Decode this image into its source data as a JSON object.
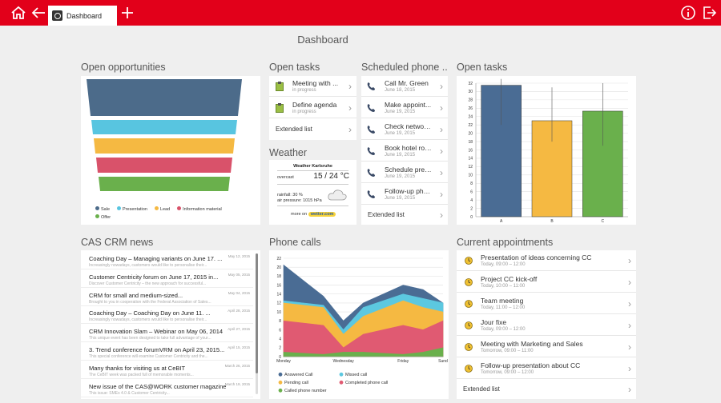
{
  "topbar": {
    "tab_label": "Dashboard",
    "accent": "#e2001a"
  },
  "page": {
    "title": "Dashboard"
  },
  "opportunities": {
    "title": "Open opportunities",
    "legend": [
      {
        "label": "Sale",
        "color": "#4c6b8a"
      },
      {
        "label": "Presentation",
        "color": "#58c5e0"
      },
      {
        "label": "Lead",
        "color": "#f5b942"
      },
      {
        "label": "Information material",
        "color": "#d9526a"
      },
      {
        "label": "Offer",
        "color": "#6ab04c"
      }
    ]
  },
  "open_tasks": {
    "title": "Open tasks",
    "items": [
      {
        "title": "Meeting with ...",
        "status": "in progress"
      },
      {
        "title": "Define agenda",
        "status": "in progress"
      }
    ],
    "extended": "Extended list"
  },
  "weather": {
    "title": "Weather",
    "heading": "Weather Karlsruhe",
    "condition": "overcast",
    "temp": "15 / 24 °C",
    "rainfall": "rainfall: 30 %",
    "pressure": "air pressure: 1015 hPa",
    "more_label": "more on",
    "more_link": "wetter.com"
  },
  "scheduled": {
    "title": "Scheduled phone ...",
    "items": [
      {
        "title": "Call Mr. Green",
        "date": "June 18, 2015"
      },
      {
        "title": "Make appoint...",
        "date": "June 19, 2015"
      },
      {
        "title": "Check network...",
        "date": "June 19, 2015"
      },
      {
        "title": "Book hotel roo...",
        "date": "June 19, 2015"
      },
      {
        "title": "Schedule pres...",
        "date": "June 19, 2015"
      },
      {
        "title": "Follow-up pho...",
        "date": "June 19, 2015"
      }
    ],
    "extended": "Extended list"
  },
  "tasks_chart": {
    "title": "Open tasks"
  },
  "news": {
    "title": "CAS CRM news",
    "items": [
      {
        "title": "Coaching Day – Managing variants on June 17. ...",
        "date": "May 12, 2015",
        "excerpt": "Increasingly nowadays, customers would like to personalise their..."
      },
      {
        "title": "Customer Centricity forum on June 17, 2015 in...",
        "date": "May 05, 2015",
        "excerpt": "Discover Customer Centricity – the new approach for successful..."
      },
      {
        "title": "CRM for small and medium-sized...",
        "date": "May 04, 2015",
        "excerpt": "Brought to you in cooperation with the Federal Association of Sales..."
      },
      {
        "title": "Coaching Day – Coaching Day on June 11. ...",
        "date": "April 28, 2015",
        "excerpt": "Increasingly nowadays, customers would like to personalise their..."
      },
      {
        "title": "CRM Innovation Slam – Webinar on May 06, 2014",
        "date": "April 27, 2015",
        "excerpt": "This unique event has been designed to take full advantage of your..."
      },
      {
        "title": "3. Trend conference forumVRM on April 23, 2015...",
        "date": "April 15, 2015",
        "excerpt": "This special conference will examine Customer Centricity and the..."
      },
      {
        "title": "Many thanks for visiting us at CeBIT",
        "date": "March 26, 2015",
        "excerpt": "The CeBIT week was packed full of memorable moments..."
      },
      {
        "title": "New issue of the CAS@WORK customer magazine",
        "date": "March 19, 2015",
        "excerpt": "This issue: SMEs 4.0 & Customer Centricity..."
      }
    ]
  },
  "phone_calls": {
    "title": "Phone calls",
    "legend": [
      {
        "label": "Answered Call",
        "color": "#4a6c94"
      },
      {
        "label": "Missed call",
        "color": "#5cc8e0"
      },
      {
        "label": "Pending call",
        "color": "#f5b942"
      },
      {
        "label": "Completed phone call",
        "color": "#e05a72"
      },
      {
        "label": "Called phone number",
        "color": "#6ab04c"
      }
    ]
  },
  "appointments": {
    "title": "Current appointments",
    "items": [
      {
        "title": "Presentation of ideas concerning CC",
        "time": "Today, 09:00 – 12:00"
      },
      {
        "title": "Project CC kick-off",
        "time": "Today, 10:00 – 11:00"
      },
      {
        "title": "Team meeting",
        "time": "Today, 11:00 – 12:00"
      },
      {
        "title": "Jour fixe",
        "time": "Today, 09:00 – 12:00"
      },
      {
        "title": "Meeting with Marketing and Sales",
        "time": "Tomorrow, 09:00 – 11:00"
      },
      {
        "title": "Follow-up presentation about CC",
        "time": "Tomorrow, 09:00 – 12:00"
      }
    ],
    "extended": "Extended list"
  },
  "chart_data": [
    {
      "type": "bar",
      "categories": [
        "A",
        "B",
        "C"
      ],
      "values": [
        31.5,
        23,
        25.3
      ],
      "errors": [
        [
          22,
          33
        ],
        [
          18,
          31
        ],
        [
          17,
          32
        ]
      ],
      "colors": [
        "#4a6c94",
        "#f5b942",
        "#6ab04c"
      ],
      "ylim": [
        0,
        32
      ],
      "yticks": [
        0,
        2,
        4,
        6,
        8,
        10,
        12,
        14,
        16,
        18,
        20,
        22,
        24,
        26,
        28,
        30,
        32
      ],
      "grid": true
    },
    {
      "type": "area",
      "x": [
        "Monday",
        "Wednesday",
        "Friday",
        "Sund"
      ],
      "x_positions": [
        0,
        1.5,
        3,
        4
      ],
      "ylim": [
        0,
        22
      ],
      "yticks": [
        0,
        2,
        4,
        6,
        8,
        10,
        12,
        14,
        16,
        18,
        20,
        22
      ],
      "series": [
        {
          "name": "Called phone number",
          "color": "#6ab04c",
          "points": [
            [
              0,
              1
            ],
            [
              1,
              0.5
            ],
            [
              1.5,
              1
            ],
            [
              2,
              1
            ],
            [
              3,
              0.5
            ],
            [
              3.5,
              1
            ],
            [
              4,
              2
            ]
          ]
        },
        {
          "name": "Completed phone call",
          "color": "#e05a72",
          "points": [
            [
              0,
              8
            ],
            [
              1,
              7
            ],
            [
              1.5,
              2
            ],
            [
              2,
              5
            ],
            [
              3,
              7
            ],
            [
              3.5,
              6
            ],
            [
              4,
              8
            ]
          ]
        },
        {
          "name": "Pending call",
          "color": "#f5b942",
          "points": [
            [
              0,
              12
            ],
            [
              1,
              11
            ],
            [
              1.5,
              5
            ],
            [
              2,
              9
            ],
            [
              3,
              12.5
            ],
            [
              3.5,
              11
            ],
            [
              4,
              10
            ]
          ]
        },
        {
          "name": "Missed call",
          "color": "#5cc8e0",
          "points": [
            [
              0,
              12.5
            ],
            [
              1,
              11.5
            ],
            [
              1.5,
              6
            ],
            [
              2,
              11
            ],
            [
              3,
              14
            ],
            [
              3.5,
              13
            ],
            [
              4,
              12
            ]
          ]
        },
        {
          "name": "Answered Call",
          "color": "#4a6c94",
          "points": [
            [
              0,
              20.5
            ],
            [
              1,
              13.5
            ],
            [
              1.5,
              8
            ],
            [
              2,
              12
            ],
            [
              3,
              16
            ],
            [
              3.5,
              15
            ],
            [
              4,
              12
            ]
          ]
        }
      ]
    }
  ]
}
